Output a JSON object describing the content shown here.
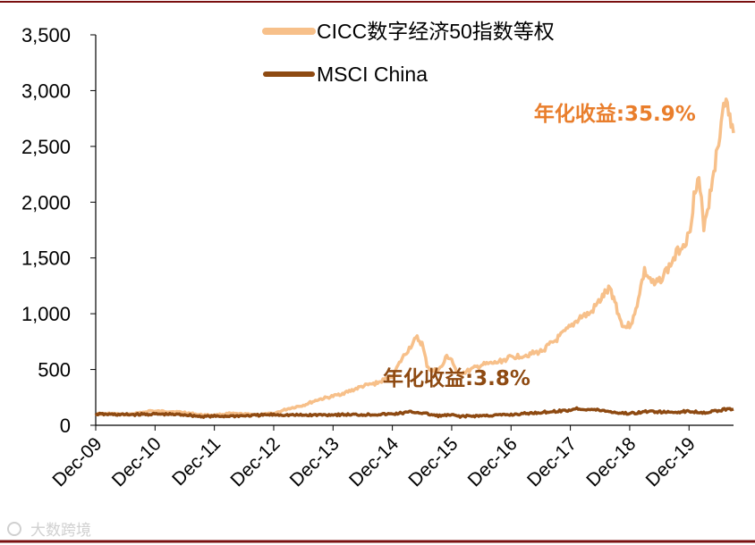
{
  "chart_data": {
    "type": "line",
    "title": "",
    "xlabel": "",
    "ylabel": "",
    "x_ticks": [
      "Dec-09",
      "Dec-10",
      "Dec-11",
      "Dec-12",
      "Dec-13",
      "Dec-14",
      "Dec-15",
      "Dec-16",
      "Dec-17",
      "Dec-18",
      "Dec-19"
    ],
    "x_range": [
      "2009-12",
      "2020-09"
    ],
    "ylim": [
      0,
      3500
    ],
    "y_ticks": [
      "0",
      "500",
      "1,000",
      "1,500",
      "2,000",
      "2,500",
      "3,000",
      "3,500"
    ],
    "grid": false,
    "legend_position": "top-center",
    "series": [
      {
        "name": "CICC数字经济50指数等权",
        "color": "#F7C08A",
        "points": [
          [
            "2009-12",
            100
          ],
          [
            "2010-03",
            105
          ],
          [
            "2010-06",
            95
          ],
          [
            "2010-09",
            110
          ],
          [
            "2010-11",
            130
          ],
          [
            "2010-12",
            125
          ],
          [
            "2011-03",
            125
          ],
          [
            "2011-06",
            115
          ],
          [
            "2011-09",
            95
          ],
          [
            "2011-12",
            90
          ],
          [
            "2012-03",
            105
          ],
          [
            "2012-06",
            100
          ],
          [
            "2012-09",
            95
          ],
          [
            "2012-12",
            105
          ],
          [
            "2013-03",
            150
          ],
          [
            "2013-06",
            180
          ],
          [
            "2013-09",
            230
          ],
          [
            "2013-12",
            260
          ],
          [
            "2014-03",
            300
          ],
          [
            "2014-06",
            350
          ],
          [
            "2014-09",
            380
          ],
          [
            "2014-12",
            440
          ],
          [
            "2015-02",
            600
          ],
          [
            "2015-04",
            730
          ],
          [
            "2015-05",
            780
          ],
          [
            "2015-06",
            730
          ],
          [
            "2015-07",
            540
          ],
          [
            "2015-08",
            480
          ],
          [
            "2015-10",
            520
          ],
          [
            "2015-11",
            620
          ],
          [
            "2015-12",
            590
          ],
          [
            "2016-01",
            460
          ],
          [
            "2016-03",
            480
          ],
          [
            "2016-06",
            540
          ],
          [
            "2016-09",
            560
          ],
          [
            "2016-12",
            610
          ],
          [
            "2017-03",
            630
          ],
          [
            "2017-06",
            660
          ],
          [
            "2017-09",
            760
          ],
          [
            "2017-12",
            880
          ],
          [
            "2018-02",
            970
          ],
          [
            "2018-04",
            1000
          ],
          [
            "2018-06",
            1120
          ],
          [
            "2018-07",
            1180
          ],
          [
            "2018-08",
            1220
          ],
          [
            "2018-09",
            1120
          ],
          [
            "2018-10",
            950
          ],
          [
            "2018-11",
            880
          ],
          [
            "2018-12",
            900
          ],
          [
            "2019-01",
            980
          ],
          [
            "2019-02",
            1200
          ],
          [
            "2019-03",
            1380
          ],
          [
            "2019-05",
            1250
          ],
          [
            "2019-06",
            1300
          ],
          [
            "2019-08",
            1420
          ],
          [
            "2019-10",
            1580
          ],
          [
            "2019-12",
            1700
          ],
          [
            "2020-01",
            2050
          ],
          [
            "2020-02",
            2180
          ],
          [
            "2020-03",
            1800
          ],
          [
            "2020-04",
            2000
          ],
          [
            "2020-05",
            2300
          ],
          [
            "2020-06",
            2500
          ],
          [
            "2020-07",
            2950
          ],
          [
            "2020-08",
            2800
          ],
          [
            "2020-09",
            2620
          ]
        ]
      },
      {
        "name": "MSCI China",
        "color": "#8E4A12",
        "points": [
          [
            "2009-12",
            100
          ],
          [
            "2010-06",
            95
          ],
          [
            "2010-12",
            100
          ],
          [
            "2011-06",
            95
          ],
          [
            "2011-09",
            80
          ],
          [
            "2011-12",
            80
          ],
          [
            "2012-06",
            85
          ],
          [
            "2012-12",
            95
          ],
          [
            "2013-06",
            90
          ],
          [
            "2013-12",
            95
          ],
          [
            "2014-06",
            95
          ],
          [
            "2014-12",
            100
          ],
          [
            "2015-04",
            120
          ],
          [
            "2015-06",
            110
          ],
          [
            "2015-09",
            85
          ],
          [
            "2015-12",
            90
          ],
          [
            "2016-02",
            80
          ],
          [
            "2016-06",
            85
          ],
          [
            "2016-12",
            95
          ],
          [
            "2017-06",
            115
          ],
          [
            "2017-12",
            135
          ],
          [
            "2018-01",
            150
          ],
          [
            "2018-06",
            135
          ],
          [
            "2018-10",
            110
          ],
          [
            "2018-12",
            105
          ],
          [
            "2019-04",
            125
          ],
          [
            "2019-08",
            115
          ],
          [
            "2019-12",
            125
          ],
          [
            "2020-03",
            115
          ],
          [
            "2020-06",
            130
          ],
          [
            "2020-08",
            150
          ],
          [
            "2020-09",
            145
          ]
        ]
      }
    ],
    "annotations": [
      {
        "text": "年化收益:35.9%",
        "color": "#E97E2C",
        "x": "2018-09",
        "y": 2730
      },
      {
        "text": "年化收益:3.8%",
        "color": "#8E4A12",
        "x": "2016-01",
        "y": 360
      }
    ]
  },
  "watermark": "大数跨境"
}
